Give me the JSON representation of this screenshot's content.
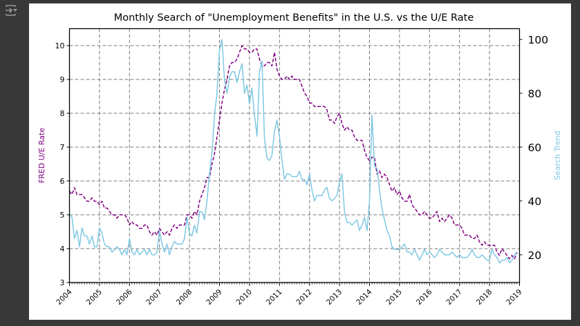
{
  "toolbar": {
    "icon": "output-toggle-icon"
  },
  "chart_data": {
    "type": "line",
    "title": "Monthly Search of \"Unemployment Benefits\" in the U.S. vs the U/E Rate",
    "xlabel": "",
    "ylabel": "FRED U/E Rate",
    "ylabel_right": "Search Trend",
    "x_start": "2004-01",
    "x_end": "2019-01",
    "xlim": [
      2004,
      2019
    ],
    "ylim": [
      3,
      10.5
    ],
    "ylim_right": [
      9.7,
      104
    ],
    "x_ticks": [
      "2004",
      "2005",
      "2006",
      "2007",
      "2008",
      "2009",
      "2010",
      "2011",
      "2012",
      "2013",
      "2014",
      "2015",
      "2016",
      "2017",
      "2018",
      "2019"
    ],
    "y_ticks": [
      "3",
      "4",
      "5",
      "6",
      "7",
      "8",
      "9",
      "10"
    ],
    "y_ticks_right": [
      "20",
      "40",
      "60",
      "80",
      "100"
    ],
    "grid": true,
    "colors": {
      "ue": "#800080",
      "search": "#7ec8e3",
      "grid": "#777777"
    },
    "series": [
      {
        "name": "FRED U/E Rate",
        "axis": "left",
        "style": "dashed",
        "values": [
          5.7,
          5.6,
          5.8,
          5.6,
          5.6,
          5.6,
          5.5,
          5.4,
          5.4,
          5.5,
          5.4,
          5.4,
          5.3,
          5.4,
          5.2,
          5.2,
          5.1,
          5.0,
          5.0,
          4.9,
          5.0,
          5.0,
          5.0,
          4.9,
          4.7,
          4.8,
          4.7,
          4.7,
          4.6,
          4.6,
          4.7,
          4.7,
          4.5,
          4.4,
          4.5,
          4.4,
          4.6,
          4.5,
          4.4,
          4.5,
          4.4,
          4.6,
          4.7,
          4.6,
          4.7,
          4.7,
          4.7,
          5.0,
          5.0,
          4.9,
          5.1,
          5.0,
          5.4,
          5.6,
          5.8,
          6.1,
          6.1,
          6.5,
          6.8,
          7.3,
          7.8,
          8.3,
          8.7,
          9.0,
          9.4,
          9.5,
          9.5,
          9.6,
          9.8,
          10.0,
          9.9,
          9.9,
          9.8,
          9.8,
          9.9,
          9.9,
          9.6,
          9.4,
          9.4,
          9.5,
          9.5,
          9.4,
          9.8,
          9.3,
          9.1,
          9.0,
          9.0,
          9.1,
          9.0,
          9.1,
          9.0,
          9.0,
          9.0,
          8.8,
          8.6,
          8.5,
          8.3,
          8.3,
          8.2,
          8.2,
          8.2,
          8.2,
          8.2,
          8.1,
          7.8,
          7.8,
          7.7,
          7.9,
          8.0,
          7.7,
          7.5,
          7.6,
          7.5,
          7.5,
          7.3,
          7.2,
          7.2,
          7.2,
          6.9,
          6.7,
          6.6,
          6.7,
          6.7,
          6.2,
          6.3,
          6.1,
          6.2,
          6.1,
          5.9,
          5.7,
          5.8,
          5.6,
          5.7,
          5.5,
          5.4,
          5.4,
          5.6,
          5.3,
          5.2,
          5.1,
          5.0,
          5.0,
          5.1,
          5.0,
          4.9,
          4.9,
          5.0,
          5.1,
          4.8,
          4.9,
          4.8,
          4.9,
          5.0,
          4.9,
          4.7,
          4.7,
          4.7,
          4.6,
          4.4,
          4.4,
          4.4,
          4.3,
          4.3,
          4.4,
          4.2,
          4.1,
          4.2,
          4.1,
          4.1,
          4.1,
          4.1,
          3.9,
          3.8,
          4.0,
          3.9,
          3.8,
          3.7,
          3.8,
          3.7,
          3.9
        ]
      },
      {
        "name": "Search Trend",
        "axis": "right",
        "style": "solid",
        "values": [
          35,
          34,
          26,
          29,
          23,
          30,
          27,
          27,
          24,
          27,
          23,
          23,
          30,
          28,
          24,
          23,
          23,
          21,
          22,
          23,
          22,
          20,
          22,
          20,
          26,
          21,
          20,
          22,
          20,
          21,
          22,
          20,
          22,
          20,
          20,
          21,
          29,
          24,
          21,
          24,
          20,
          23,
          25,
          24,
          24,
          24,
          26,
          34,
          28,
          27,
          31,
          28,
          36,
          36,
          33,
          40,
          50,
          58,
          72,
          80,
          96,
          100,
          85,
          80,
          86,
          88,
          88,
          84,
          88,
          91,
          80,
          83,
          76,
          82,
          72,
          64,
          88,
          92,
          63,
          56,
          55,
          57,
          66,
          70,
          64,
          55,
          48,
          50,
          50,
          49,
          49,
          49,
          51,
          48,
          48,
          46,
          50,
          44,
          40,
          42,
          42,
          42,
          44,
          45,
          41,
          40,
          41,
          42,
          47,
          50,
          36,
          32,
          32,
          31,
          32,
          33,
          29,
          31,
          34,
          29,
          40,
          72,
          53,
          52,
          44,
          37,
          33,
          29,
          27,
          23,
          22,
          22,
          22,
          23,
          24,
          21,
          21,
          20,
          22,
          20,
          18,
          20,
          22,
          20,
          21,
          20,
          19,
          20,
          22,
          21,
          20,
          20,
          20,
          21,
          20,
          19,
          20,
          19,
          19,
          19,
          20,
          22,
          20,
          19,
          19,
          20,
          19,
          18,
          18,
          22,
          20,
          19,
          17,
          18,
          18,
          19,
          17,
          18,
          20,
          21
        ]
      }
    ]
  }
}
